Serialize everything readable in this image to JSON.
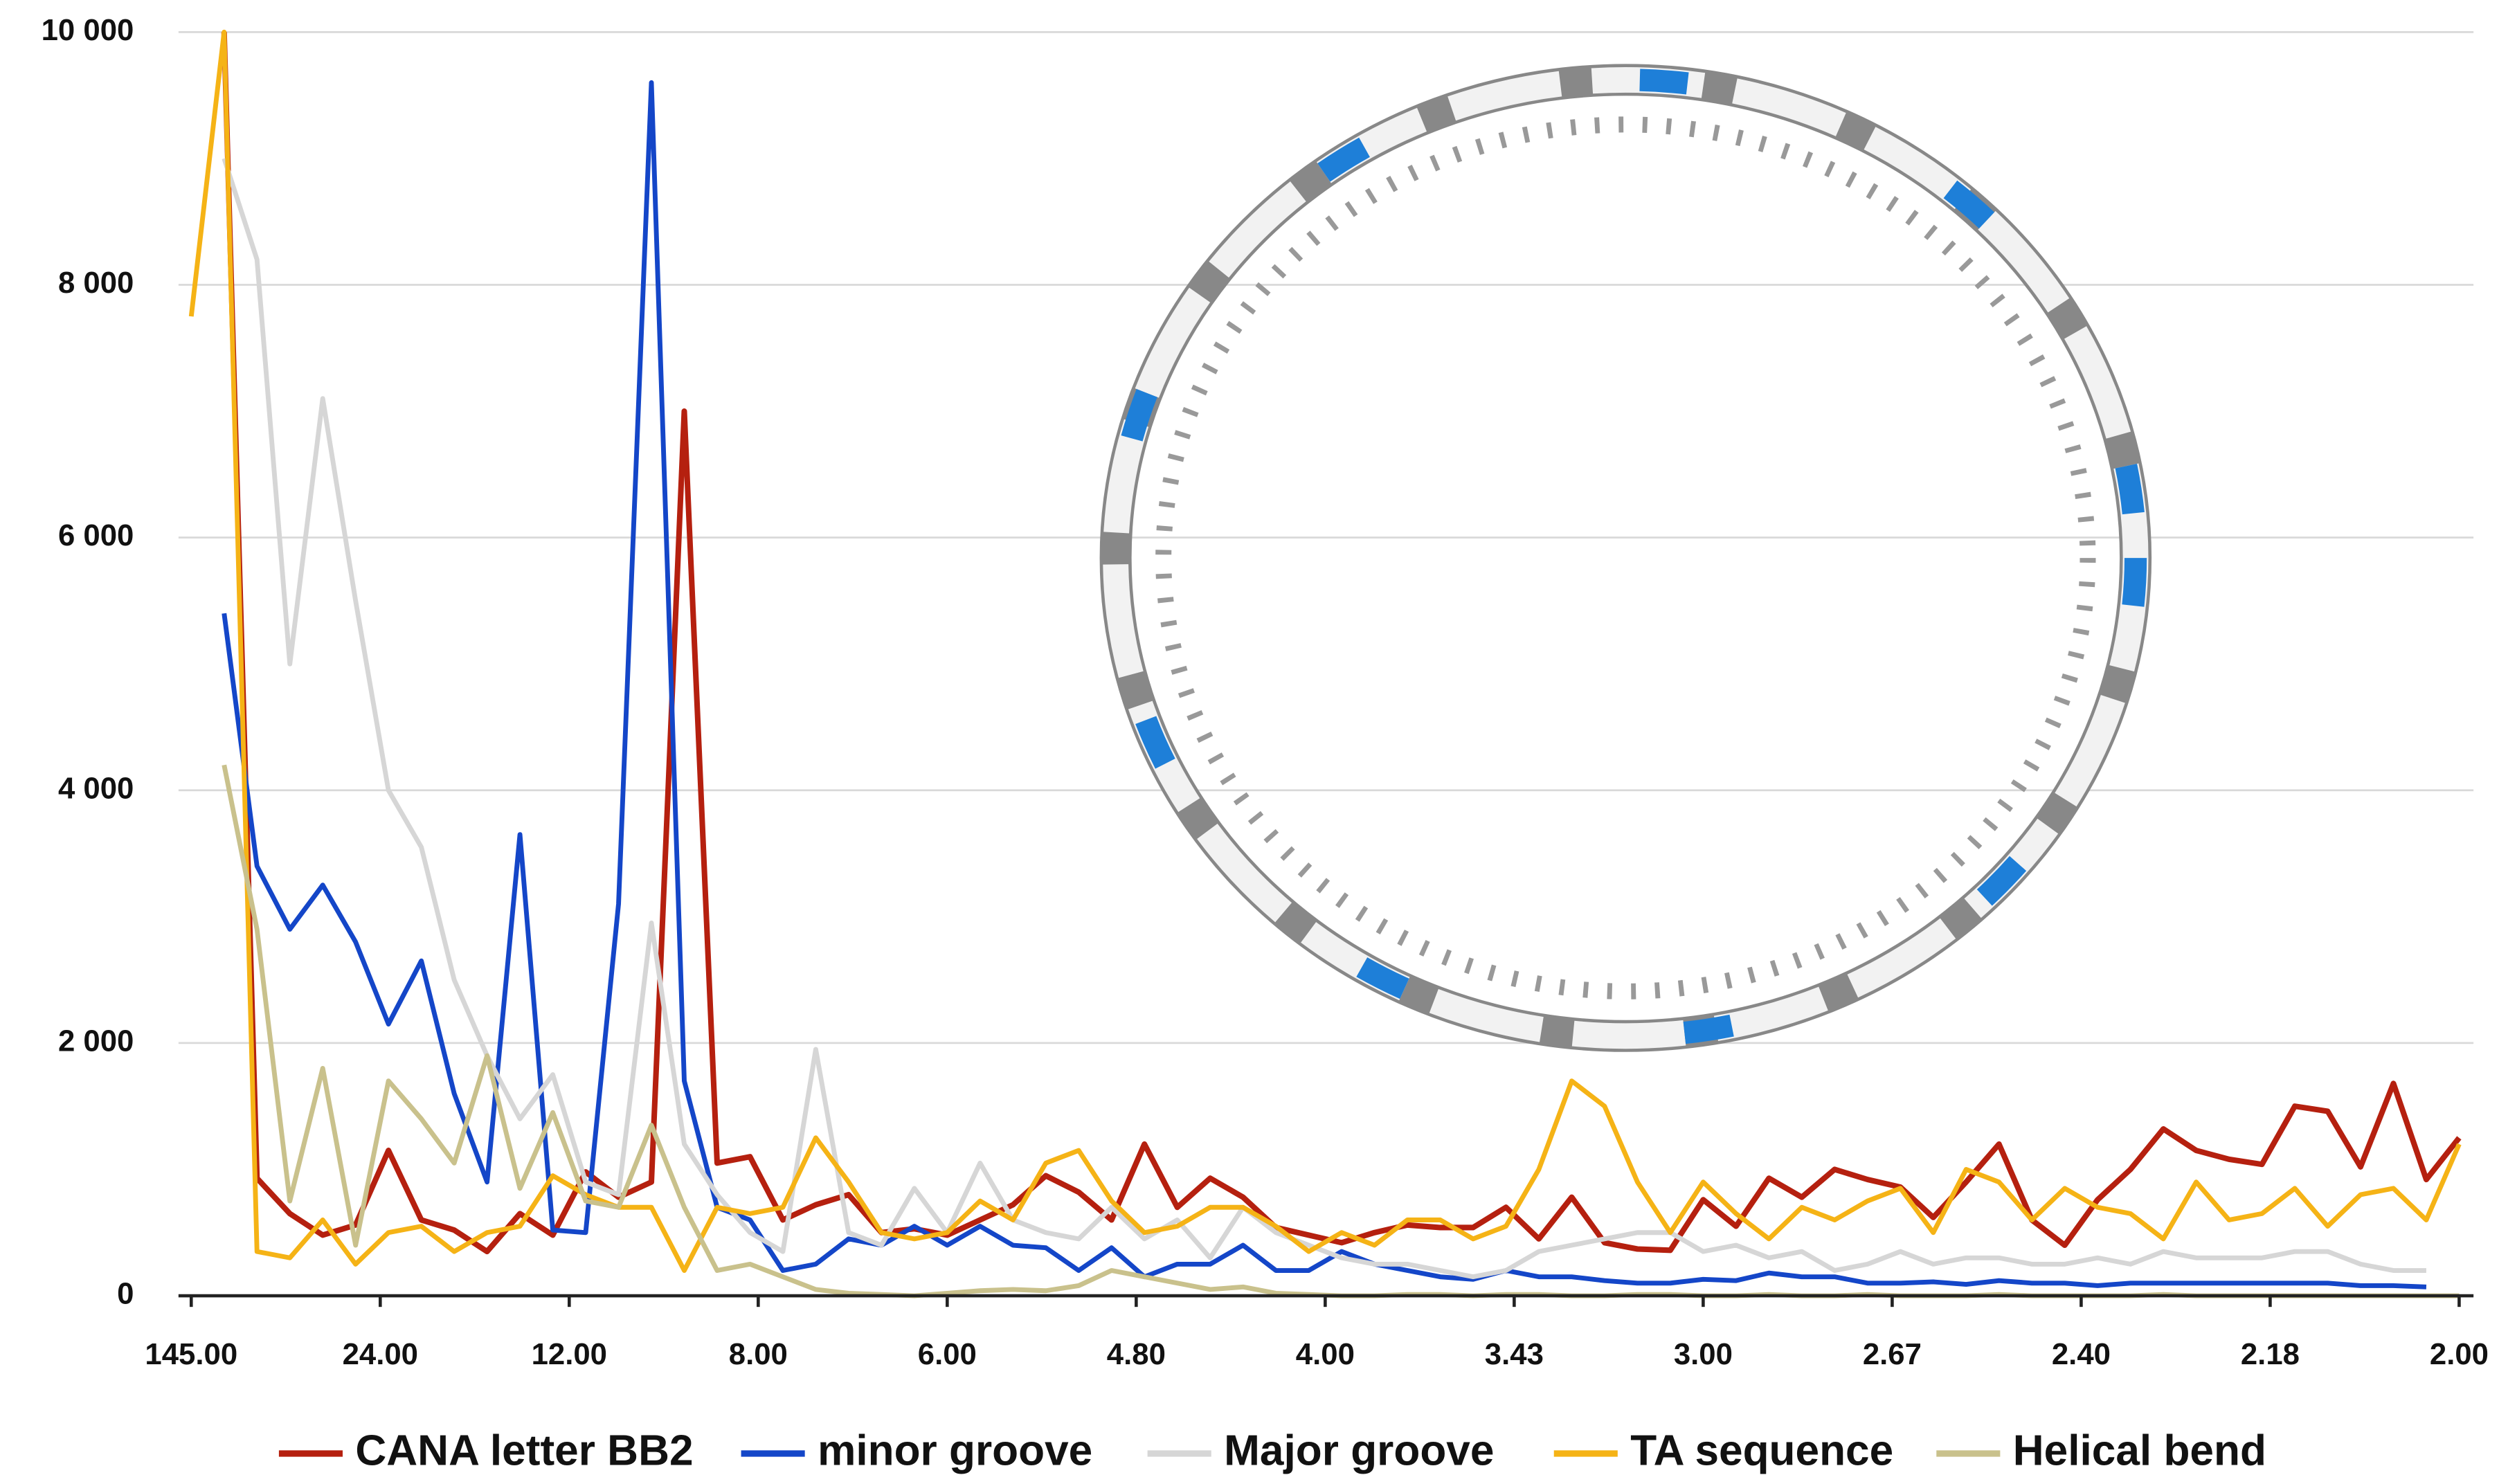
{
  "chart_data": {
    "type": "line",
    "x": [
      0,
      1,
      2,
      3,
      4,
      5,
      6,
      7,
      8,
      9,
      10,
      11,
      12,
      13,
      14,
      15,
      16,
      17,
      18,
      19,
      20,
      21,
      22,
      23,
      24,
      25,
      26,
      27,
      28,
      29,
      30,
      31,
      32,
      33,
      34,
      35,
      36,
      37,
      38,
      39,
      40,
      41,
      42,
      43,
      44,
      45,
      46,
      47,
      48,
      49,
      50,
      51,
      52,
      53,
      54,
      55,
      56,
      57,
      58,
      59,
      60,
      61,
      62,
      63,
      64,
      65,
      66,
      67,
      68,
      69
    ],
    "xlim": [
      0,
      69
    ],
    "xticks": [
      {
        "value": 0,
        "label": "145.00"
      },
      {
        "value": 5.75,
        "label": "24.00"
      },
      {
        "value": 11.5,
        "label": "12.00"
      },
      {
        "value": 17.25,
        "label": "8.00"
      },
      {
        "value": 23,
        "label": "6.00"
      },
      {
        "value": 28.75,
        "label": "4.80"
      },
      {
        "value": 34.5,
        "label": "4.00"
      },
      {
        "value": 40.25,
        "label": "3.43"
      },
      {
        "value": 46,
        "label": "3.00"
      },
      {
        "value": 51.75,
        "label": "2.67"
      },
      {
        "value": 57.5,
        "label": "2.40"
      },
      {
        "value": 63.25,
        "label": "2.18"
      },
      {
        "value": 69,
        "label": "2.00"
      }
    ],
    "ylim": [
      0,
      10000
    ],
    "yticks": [
      0,
      {
        "value": 2000,
        "label": "2 000"
      },
      {
        "value": 4000,
        "label": "4 000"
      },
      {
        "value": 6000,
        "label": "6 000"
      },
      {
        "value": 8000,
        "label": "8 000"
      },
      {
        "value": 10000,
        "label": "10 000"
      }
    ],
    "grid": true,
    "series": [
      {
        "name": "CANA letter BB2",
        "color": "#b5200f",
        "values": [
          null,
          10000,
          930,
          650,
          480,
          560,
          1150,
          600,
          520,
          350,
          650,
          480,
          980,
          780,
          900,
          7000,
          1050,
          1100,
          600,
          720,
          800,
          500,
          530,
          480,
          600,
          720,
          950,
          820,
          600,
          1200,
          700,
          930,
          780,
          540,
          480,
          420,
          500,
          560,
          540,
          540,
          700,
          450,
          780,
          420,
          370,
          360,
          760,
          550,
          930,
          780,
          1000,
          920,
          860,
          620,
          900,
          1200,
          600,
          400,
          760,
          1000,
          1320,
          1150,
          1080,
          1040,
          1500,
          1460,
          1020,
          1680,
          920,
          1250
        ]
      },
      {
        "name": "minor groove",
        "color": "#1446c8",
        "values": [
          null,
          5400,
          3400,
          2900,
          3250,
          2800,
          2150,
          2650,
          1600,
          900,
          3650,
          520,
          500,
          3100,
          9600,
          1700,
          700,
          600,
          200,
          250,
          450,
          400,
          550,
          400,
          550,
          400,
          380,
          200,
          380,
          150,
          250,
          250,
          400,
          200,
          200,
          350,
          250,
          200,
          150,
          130,
          200,
          150,
          150,
          120,
          100,
          100,
          130,
          120,
          180,
          150,
          150,
          100,
          100,
          110,
          90,
          120,
          100,
          100,
          80,
          100,
          100,
          100,
          100,
          100,
          100,
          100,
          80,
          80,
          70,
          null
        ]
      },
      {
        "name": "Major groove",
        "color": "#d6d6d6",
        "values": [
          null,
          9000,
          8200,
          5000,
          7100,
          5500,
          4000,
          3550,
          2500,
          1900,
          1400,
          1750,
          900,
          800,
          2950,
          1200,
          800,
          500,
          350,
          1950,
          500,
          400,
          850,
          500,
          1050,
          600,
          500,
          450,
          700,
          450,
          600,
          300,
          700,
          500,
          400,
          300,
          250,
          250,
          200,
          150,
          200,
          350,
          400,
          450,
          500,
          500,
          350,
          400,
          300,
          350,
          200,
          250,
          350,
          250,
          300,
          300,
          250,
          250,
          300,
          250,
          350,
          300,
          300,
          300,
          350,
          350,
          250,
          200,
          200,
          null
        ]
      },
      {
        "name": "TA sequence",
        "color": "#f5b316",
        "values": [
          7750,
          10000,
          350,
          300,
          600,
          250,
          500,
          550,
          350,
          500,
          550,
          950,
          800,
          700,
          700,
          200,
          700,
          650,
          700,
          1250,
          900,
          500,
          450,
          500,
          750,
          600,
          1050,
          1150,
          750,
          500,
          550,
          700,
          700,
          550,
          350,
          500,
          400,
          600,
          600,
          450,
          550,
          1000,
          1700,
          1500,
          900,
          500,
          900,
          650,
          450,
          700,
          600,
          750,
          850,
          500,
          1000,
          900,
          600,
          850,
          700,
          650,
          450,
          900,
          600,
          650,
          850,
          550,
          800,
          850,
          600,
          1200
        ]
      },
      {
        "name": "Helical bend",
        "color": "#c9c18c",
        "values": [
          null,
          4200,
          2900,
          750,
          1800,
          400,
          1700,
          1400,
          1050,
          1900,
          850,
          1450,
          750,
          700,
          1350,
          700,
          200,
          250,
          150,
          50,
          20,
          10,
          0,
          20,
          40,
          50,
          40,
          80,
          200,
          150,
          100,
          50,
          70,
          20,
          10,
          0,
          0,
          10,
          10,
          0,
          10,
          10,
          0,
          0,
          10,
          10,
          0,
          0,
          10,
          0,
          0,
          10,
          0,
          0,
          0,
          10,
          0,
          0,
          0,
          0,
          10,
          0,
          0,
          0,
          0,
          0,
          0,
          0,
          0,
          0
        ]
      }
    ]
  }
}
